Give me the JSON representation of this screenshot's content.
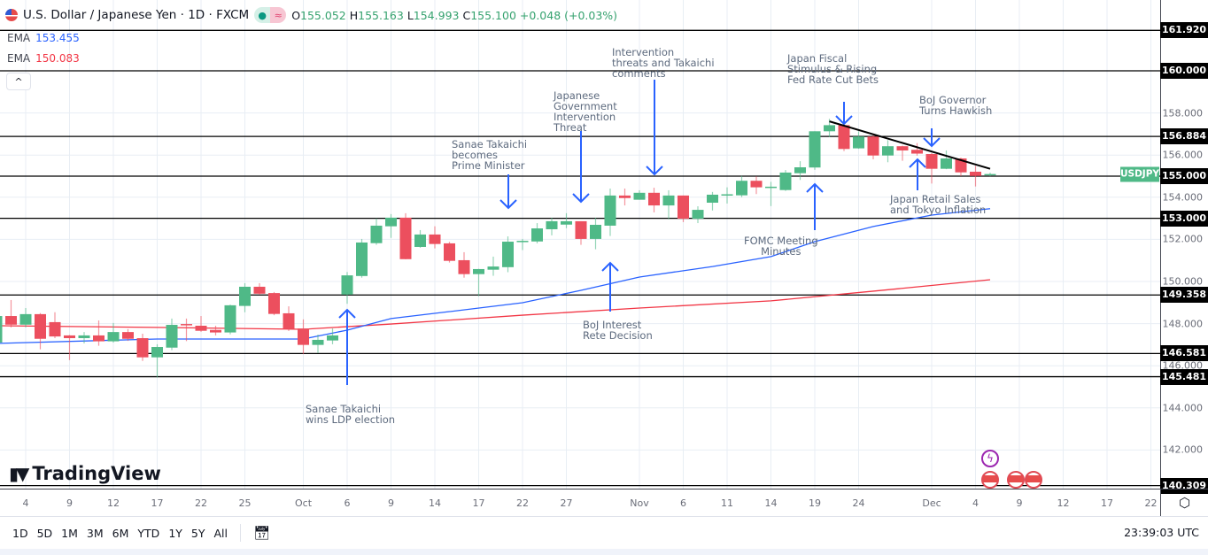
{
  "header": {
    "title": "U.S. Dollar / Japanese Yen · 1D · FXCM",
    "open_label": "O",
    "open": "155.052",
    "high_label": "H",
    "high": "155.163",
    "low_label": "L",
    "low": "154.993",
    "close_label": "C",
    "close": "155.100",
    "change": "+0.048 (+0.03%)"
  },
  "indicators": [
    {
      "name": "EMA",
      "value": "153.455",
      "color": "#2962ff"
    },
    {
      "name": "EMA",
      "value": "150.083",
      "color": "#f23645"
    }
  ],
  "collapse_icon": "chevron-up-icon",
  "symbol_label": "USDJPY",
  "logo_text": "TradingView",
  "bottom": {
    "ranges": [
      "1D",
      "5D",
      "1M",
      "3M",
      "6M",
      "YTD",
      "1Y",
      "5Y",
      "All"
    ],
    "clock": "23:39:03 UTC",
    "goto_icon": "calendar-goto-icon",
    "settings_icon": "gear-icon"
  },
  "annotations": [
    {
      "text": "Sanae Takaichi\nwins LDP election",
      "arrow": "up"
    },
    {
      "text": "Sanae Takaichi\nbecomes\nPrime Minister",
      "arrow": "down"
    },
    {
      "text": "Japanese\nGovernment\nIntervention\nThreat",
      "arrow": "down"
    },
    {
      "text": "Intervention\nthreats and Takaichi\ncomments",
      "arrow": "down"
    },
    {
      "text": "BoJ Interest\nRete Decision",
      "arrow": "up"
    },
    {
      "text": "FOMC Meeting\nMinutes",
      "arrow": "up"
    },
    {
      "text": "Japan Fiscal\nStimulus & Rising\nFed Rate Cut Bets",
      "arrow": "down"
    },
    {
      "text": "BoJ Governor\nTurns Hawkish",
      "arrow": "down"
    },
    {
      "text": "Japan Retail Sales\nand Tokyo Inflation",
      "arrow": "up"
    }
  ],
  "chart_data": {
    "type": "candlestick",
    "symbol": "USDJPY",
    "colors": {
      "up": "#4fb987",
      "down": "#ec4f5e",
      "ema_fast": "#2962ff",
      "ema_slow": "#f23645"
    },
    "price_ticks": [
      "142.000",
      "144.000",
      "146.000",
      "148.000",
      "150.000",
      "152.000",
      "154.000",
      "156.000",
      "158.000"
    ],
    "horizontal_levels": [
      "161.920",
      "160.000",
      "156.884",
      "155.000",
      "153.000",
      "149.358",
      "146.581",
      "145.481",
      "140.309"
    ],
    "x_ticks": [
      {
        "label": "4",
        "date": "Sep 4"
      },
      {
        "label": "9",
        "date": "Sep 9"
      },
      {
        "label": "12",
        "date": "Sep 12"
      },
      {
        "label": "17",
        "date": "Sep 17"
      },
      {
        "label": "22",
        "date": "Sep 22"
      },
      {
        "label": "25",
        "date": "Sep 25"
      },
      {
        "label": "Oct",
        "date": "Oct 1"
      },
      {
        "label": "6",
        "date": "Oct 6"
      },
      {
        "label": "9",
        "date": "Oct 9"
      },
      {
        "label": "14",
        "date": "Oct 14"
      },
      {
        "label": "17",
        "date": "Oct 17"
      },
      {
        "label": "22",
        "date": "Oct 22"
      },
      {
        "label": "27",
        "date": "Oct 27"
      },
      {
        "label": "Nov",
        "date": "Nov 3"
      },
      {
        "label": "6",
        "date": "Nov 6"
      },
      {
        "label": "11",
        "date": "Nov 11"
      },
      {
        "label": "14",
        "date": "Nov 14"
      },
      {
        "label": "19",
        "date": "Nov 19"
      },
      {
        "label": "24",
        "date": "Nov 24"
      },
      {
        "label": "Dec",
        "date": "Dec 1"
      },
      {
        "label": "4",
        "date": "Dec 4"
      },
      {
        "label": "9",
        "date": "Dec 9"
      },
      {
        "label": "12",
        "date": "Dec 12"
      },
      {
        "label": "17",
        "date": "Dec 17"
      },
      {
        "label": "22",
        "date": "Dec 22"
      }
    ],
    "candles": [
      [
        "Sep 2",
        147.1,
        148.5,
        147.0,
        148.36
      ],
      [
        "Sep 3",
        148.36,
        149.12,
        147.82,
        147.95
      ],
      [
        "Sep 4",
        147.95,
        148.74,
        147.82,
        148.45
      ],
      [
        "Sep 5",
        148.45,
        148.5,
        146.78,
        147.28
      ],
      [
        "Sep 8",
        148.07,
        148.54,
        147.31,
        147.39
      ],
      [
        "Sep 9",
        147.44,
        147.46,
        146.27,
        147.31
      ],
      [
        "Sep 10",
        147.31,
        147.6,
        147.06,
        147.44
      ],
      [
        "Sep 11",
        147.44,
        148.15,
        146.95,
        147.16
      ],
      [
        "Sep 12",
        147.16,
        148.03,
        147.1,
        147.6
      ],
      [
        "Sep 15",
        147.6,
        147.74,
        147.18,
        147.28
      ],
      [
        "Sep 16",
        147.31,
        147.52,
        146.23,
        146.4
      ],
      [
        "Sep 17",
        146.4,
        147.02,
        145.44,
        146.89
      ],
      [
        "Sep 18",
        146.86,
        148.24,
        146.74,
        147.94
      ],
      [
        "Sep 19",
        147.98,
        148.24,
        147.17,
        147.92
      ],
      [
        "Sep 22",
        147.9,
        148.36,
        147.61,
        147.66
      ],
      [
        "Sep 23",
        147.7,
        147.9,
        147.44,
        147.58
      ],
      [
        "Sep 24",
        147.58,
        148.9,
        147.49,
        148.87
      ],
      [
        "Sep 25",
        148.84,
        149.92,
        148.54,
        149.75
      ],
      [
        "Sep 26",
        149.75,
        149.92,
        149.37,
        149.42
      ],
      [
        "Sep 29",
        149.45,
        149.5,
        148.4,
        148.46
      ],
      [
        "Sep 30",
        148.49,
        148.82,
        147.65,
        147.74
      ],
      [
        "Oct 1",
        147.77,
        148.2,
        146.55,
        146.99
      ],
      [
        "Oct 2",
        146.99,
        147.48,
        146.6,
        147.23
      ],
      [
        "Oct 3",
        147.2,
        147.77,
        147.02,
        147.44
      ],
      [
        "Oct 6",
        149.38,
        150.45,
        148.94,
        150.29
      ],
      [
        "Oct 7",
        150.26,
        152.02,
        150.18,
        151.85
      ],
      [
        "Oct 8",
        151.82,
        153.0,
        151.74,
        152.65
      ],
      [
        "Oct 9",
        152.62,
        153.2,
        152.07,
        153.03
      ],
      [
        "Oct 10",
        153.03,
        153.24,
        151.05,
        151.06
      ],
      [
        "Oct 13",
        151.64,
        152.44,
        151.6,
        152.23
      ],
      [
        "Oct 14",
        152.23,
        152.62,
        151.57,
        151.78
      ],
      [
        "Oct 15",
        151.81,
        151.88,
        150.9,
        150.98
      ],
      [
        "Oct 16",
        151.01,
        151.39,
        150.18,
        150.35
      ],
      [
        "Oct 17",
        150.35,
        150.6,
        149.3,
        150.59
      ],
      [
        "Oct 20",
        150.56,
        151.18,
        150.27,
        150.71
      ],
      [
        "Oct 21",
        150.68,
        152.14,
        150.44,
        151.89
      ],
      [
        "Oct 22",
        151.89,
        152.02,
        151.49,
        151.93
      ],
      [
        "Oct 23",
        151.9,
        152.77,
        151.81,
        152.52
      ],
      [
        "Oct 24",
        152.48,
        153.03,
        152.19,
        152.86
      ],
      [
        "Oct 27",
        152.7,
        153.24,
        152.53,
        152.86
      ],
      [
        "Oct 28",
        152.86,
        152.86,
        151.74,
        152.02
      ],
      [
        "Oct 29",
        152.02,
        153.03,
        151.53,
        152.69
      ],
      [
        "Oct 30",
        152.65,
        154.41,
        152.16,
        154.08
      ],
      [
        "Oct 31",
        154.08,
        154.41,
        153.61,
        153.96
      ],
      [
        "Nov 3",
        153.88,
        154.33,
        153.88,
        154.21
      ],
      [
        "Nov 4",
        154.21,
        154.45,
        153.28,
        153.61
      ],
      [
        "Nov 5",
        153.61,
        154.33,
        152.95,
        154.08
      ],
      [
        "Nov 6",
        154.08,
        154.08,
        152.82,
        152.98
      ],
      [
        "Nov 7",
        152.98,
        153.57,
        152.77,
        153.4
      ],
      [
        "Nov 10",
        153.74,
        154.25,
        153.37,
        154.12
      ],
      [
        "Nov 11",
        154.1,
        154.47,
        153.7,
        154.14
      ],
      [
        "Nov 12",
        154.09,
        155.01,
        154.0,
        154.78
      ],
      [
        "Nov 13",
        154.78,
        154.99,
        154.15,
        154.47
      ],
      [
        "Nov 14",
        154.47,
        154.73,
        153.58,
        154.5
      ],
      [
        "Nov 17",
        154.34,
        155.29,
        154.3,
        155.17
      ],
      [
        "Nov 18",
        155.14,
        155.71,
        154.82,
        155.42
      ],
      [
        "Nov 19",
        155.41,
        157.13,
        155.3,
        157.13
      ],
      [
        "Nov 20",
        157.13,
        157.72,
        156.85,
        157.42
      ],
      [
        "Nov 21",
        157.42,
        157.48,
        156.19,
        156.29
      ],
      [
        "Nov 24",
        156.32,
        157.13,
        156.3,
        156.88
      ],
      [
        "Nov 25",
        156.88,
        156.99,
        155.8,
        155.98
      ],
      [
        "Nov 26",
        155.98,
        156.71,
        155.66,
        156.42
      ],
      [
        "Nov 27",
        156.42,
        156.45,
        155.73,
        156.22
      ],
      [
        "Nov 28",
        156.25,
        156.57,
        155.97,
        156.07
      ],
      [
        "Dec 1",
        156.05,
        156.1,
        154.65,
        155.35
      ],
      [
        "Dec 2",
        155.35,
        156.22,
        155.33,
        155.84
      ],
      [
        "Dec 3",
        155.84,
        155.88,
        155.0,
        155.18
      ],
      [
        "Dec 4",
        155.21,
        155.49,
        154.51,
        155.01
      ],
      [
        "Dec 5",
        155.052,
        155.163,
        154.993,
        155.1
      ]
    ],
    "ema_fast": [
      [
        "Sep 2",
        147.06
      ],
      [
        "Sep 17",
        147.27
      ],
      [
        "Oct 1",
        147.27
      ],
      [
        "Oct 6",
        147.69
      ],
      [
        "Oct 9",
        148.24
      ],
      [
        "Oct 15",
        148.57
      ],
      [
        "Oct 22",
        148.99
      ],
      [
        "Oct 28",
        149.58
      ],
      [
        "Nov 3",
        150.21
      ],
      [
        "Nov 10",
        150.71
      ],
      [
        "Nov 14",
        151.18
      ],
      [
        "Nov 19",
        151.89
      ],
      [
        "Nov 25",
        152.61
      ],
      [
        "Dec 1",
        153.15
      ],
      [
        "Dec 5",
        153.455
      ]
    ],
    "ema_slow": [
      [
        "Sep 2",
        147.9
      ],
      [
        "Sep 17",
        147.82
      ],
      [
        "Oct 1",
        147.73
      ],
      [
        "Oct 9",
        147.98
      ],
      [
        "Oct 22",
        148.4
      ],
      [
        "Nov 3",
        148.74
      ],
      [
        "Nov 14",
        149.08
      ],
      [
        "Nov 25",
        149.54
      ],
      [
        "Dec 5",
        150.083
      ]
    ],
    "trendline": [
      [
        "Nov 20",
        157.6
      ],
      [
        "Dec 5",
        155.35
      ]
    ]
  }
}
